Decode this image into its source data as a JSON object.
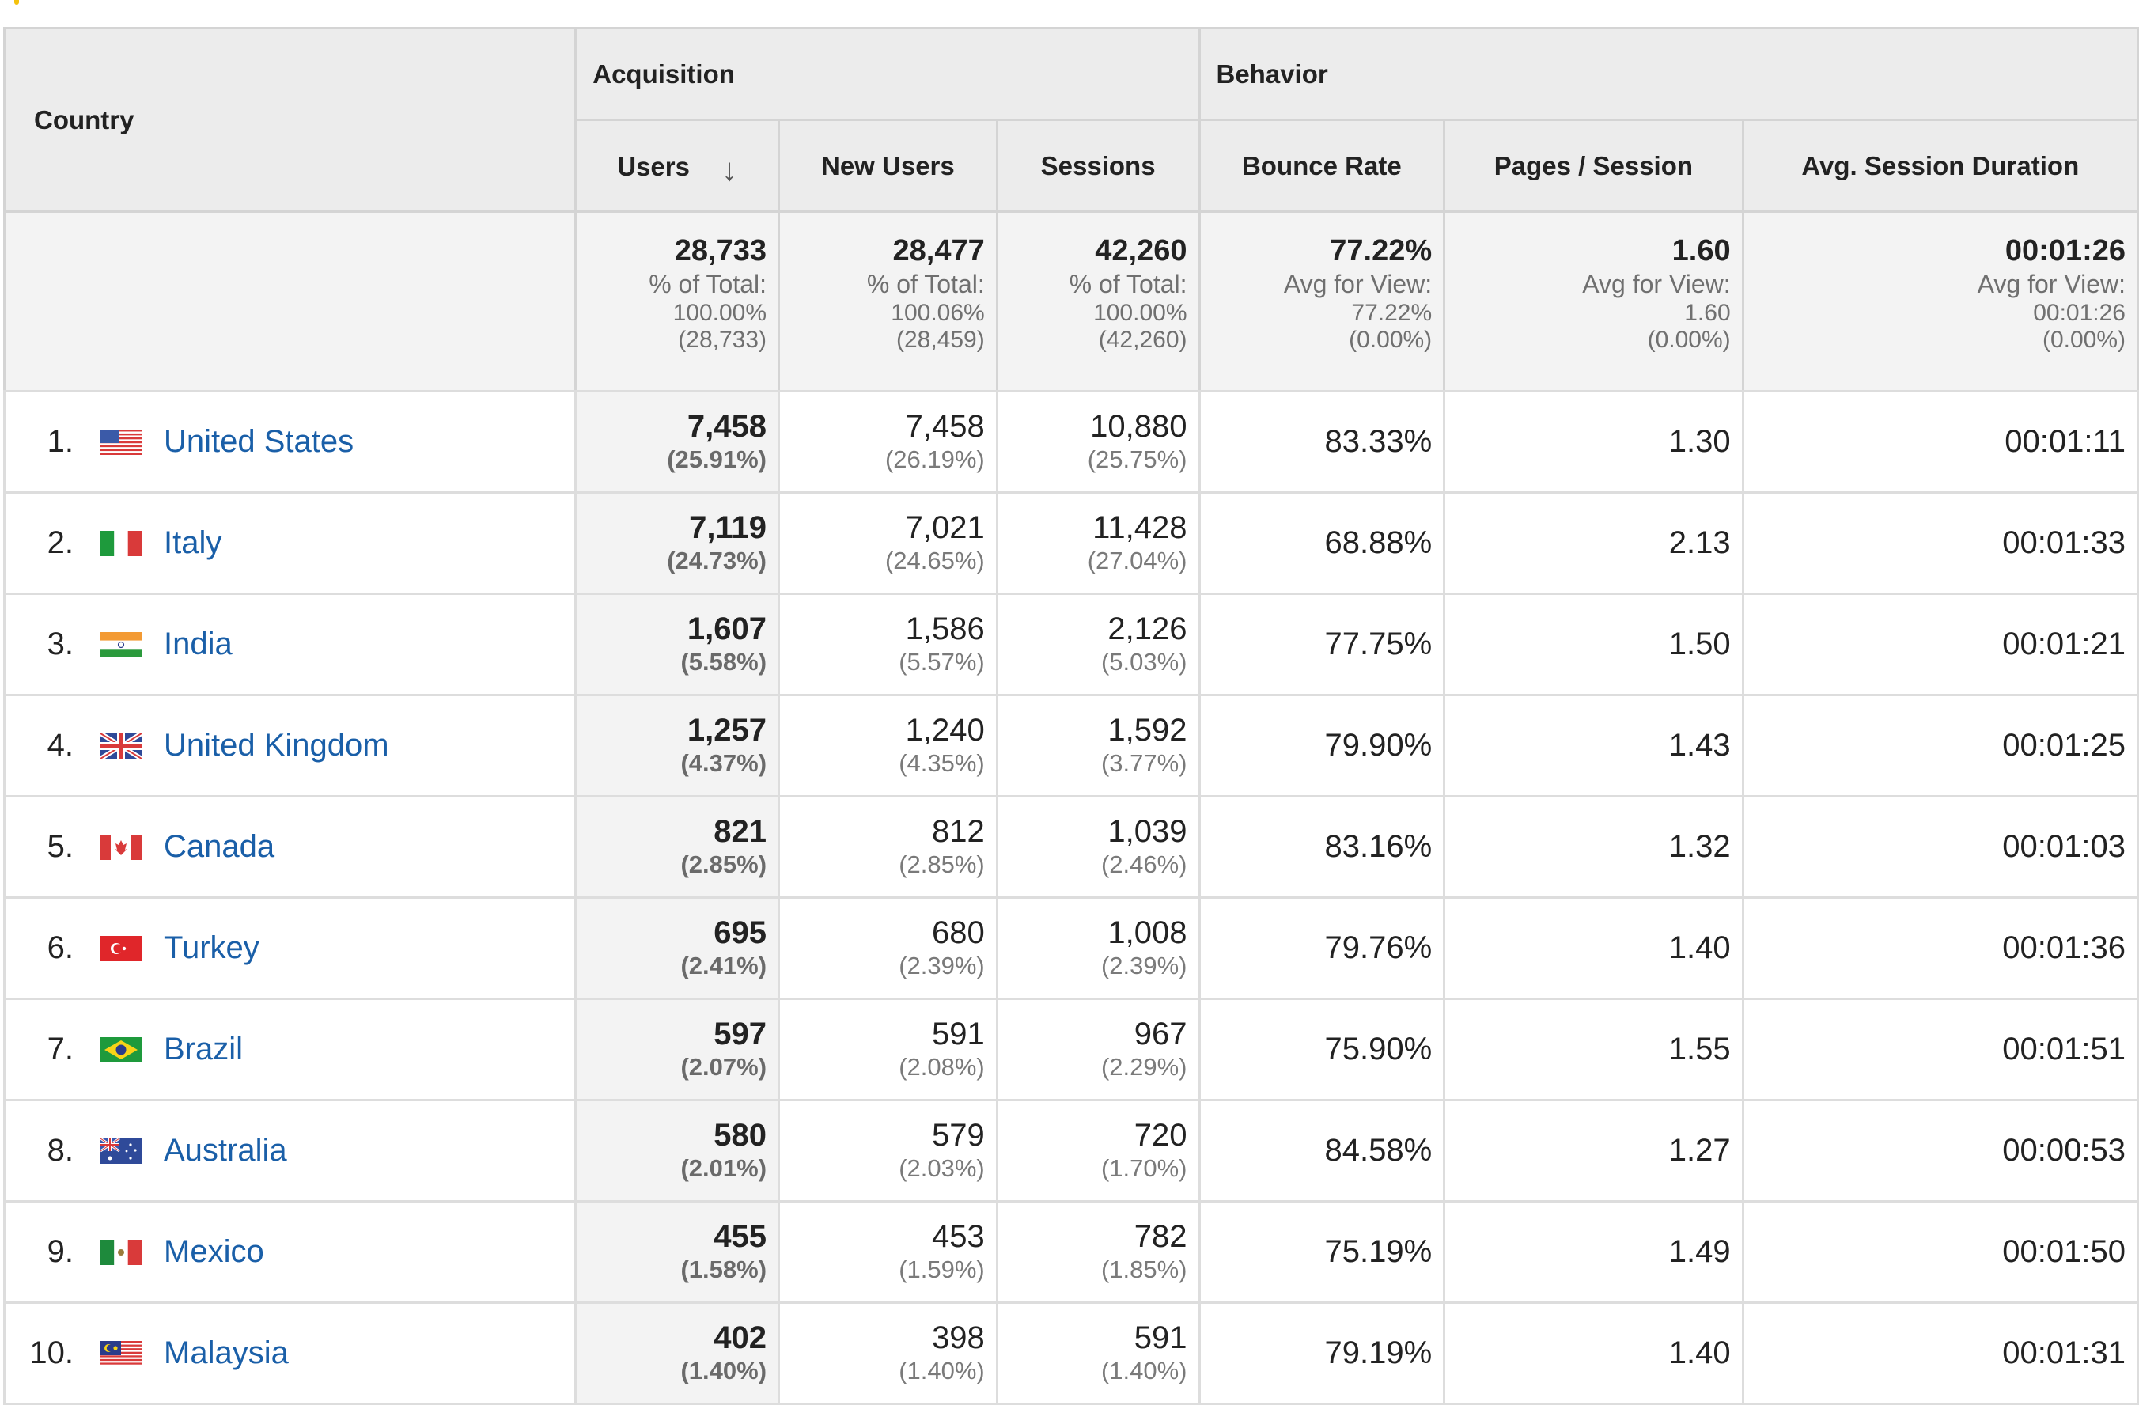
{
  "header": {
    "country": "Country",
    "acquisition": "Acquisition",
    "behavior": "Behavior",
    "columns": [
      "Users",
      "New Users",
      "Sessions",
      "Bounce Rate",
      "Pages / Session",
      "Avg. Session Duration"
    ],
    "sort_icon": "arrow-down-icon"
  },
  "totals": {
    "users": {
      "value": "28,733",
      "label": "% of Total:",
      "sub1": "100.00%",
      "sub2": "(28,733)"
    },
    "new_users": {
      "value": "28,477",
      "label": "% of Total:",
      "sub1": "100.06%",
      "sub2": "(28,459)"
    },
    "sessions": {
      "value": "42,260",
      "label": "% of Total:",
      "sub1": "100.00%",
      "sub2": "(42,260)"
    },
    "bounce_rate": {
      "value": "77.22%",
      "label": "Avg for View:",
      "sub1": "77.22%",
      "sub2": "(0.00%)"
    },
    "pages_session": {
      "value": "1.60",
      "label": "Avg for View:",
      "sub1": "1.60",
      "sub2": "(0.00%)"
    },
    "avg_duration": {
      "value": "00:01:26",
      "label": "Avg for View:",
      "sub1": "00:01:26",
      "sub2": "(0.00%)"
    }
  },
  "rows": [
    {
      "rank": "1.",
      "country": "United States",
      "flag": "us-flag-icon",
      "users": "7,458",
      "users_pct": "(25.91%)",
      "new_users": "7,458",
      "new_users_pct": "(26.19%)",
      "sessions": "10,880",
      "sessions_pct": "(25.75%)",
      "bounce_rate": "83.33%",
      "pages_session": "1.30",
      "avg_duration": "00:01:11"
    },
    {
      "rank": "2.",
      "country": "Italy",
      "flag": "italy-flag-icon",
      "users": "7,119",
      "users_pct": "(24.73%)",
      "new_users": "7,021",
      "new_users_pct": "(24.65%)",
      "sessions": "11,428",
      "sessions_pct": "(27.04%)",
      "bounce_rate": "68.88%",
      "pages_session": "2.13",
      "avg_duration": "00:01:33"
    },
    {
      "rank": "3.",
      "country": "India",
      "flag": "india-flag-icon",
      "users": "1,607",
      "users_pct": "(5.58%)",
      "new_users": "1,586",
      "new_users_pct": "(5.57%)",
      "sessions": "2,126",
      "sessions_pct": "(5.03%)",
      "bounce_rate": "77.75%",
      "pages_session": "1.50",
      "avg_duration": "00:01:21"
    },
    {
      "rank": "4.",
      "country": "United Kingdom",
      "flag": "uk-flag-icon",
      "users": "1,257",
      "users_pct": "(4.37%)",
      "new_users": "1,240",
      "new_users_pct": "(4.35%)",
      "sessions": "1,592",
      "sessions_pct": "(3.77%)",
      "bounce_rate": "79.90%",
      "pages_session": "1.43",
      "avg_duration": "00:01:25"
    },
    {
      "rank": "5.",
      "country": "Canada",
      "flag": "canada-flag-icon",
      "users": "821",
      "users_pct": "(2.85%)",
      "new_users": "812",
      "new_users_pct": "(2.85%)",
      "sessions": "1,039",
      "sessions_pct": "(2.46%)",
      "bounce_rate": "83.16%",
      "pages_session": "1.32",
      "avg_duration": "00:01:03"
    },
    {
      "rank": "6.",
      "country": "Turkey",
      "flag": "turkey-flag-icon",
      "users": "695",
      "users_pct": "(2.41%)",
      "new_users": "680",
      "new_users_pct": "(2.39%)",
      "sessions": "1,008",
      "sessions_pct": "(2.39%)",
      "bounce_rate": "79.76%",
      "pages_session": "1.40",
      "avg_duration": "00:01:36"
    },
    {
      "rank": "7.",
      "country": "Brazil",
      "flag": "brazil-flag-icon",
      "users": "597",
      "users_pct": "(2.07%)",
      "new_users": "591",
      "new_users_pct": "(2.08%)",
      "sessions": "967",
      "sessions_pct": "(2.29%)",
      "bounce_rate": "75.90%",
      "pages_session": "1.55",
      "avg_duration": "00:01:51"
    },
    {
      "rank": "8.",
      "country": "Australia",
      "flag": "australia-flag-icon",
      "users": "580",
      "users_pct": "(2.01%)",
      "new_users": "579",
      "new_users_pct": "(2.03%)",
      "sessions": "720",
      "sessions_pct": "(1.70%)",
      "bounce_rate": "84.58%",
      "pages_session": "1.27",
      "avg_duration": "00:00:53"
    },
    {
      "rank": "9.",
      "country": "Mexico",
      "flag": "mexico-flag-icon",
      "users": "455",
      "users_pct": "(1.58%)",
      "new_users": "453",
      "new_users_pct": "(1.59%)",
      "sessions": "782",
      "sessions_pct": "(1.85%)",
      "bounce_rate": "75.19%",
      "pages_session": "1.49",
      "avg_duration": "00:01:50"
    },
    {
      "rank": "10.",
      "country": "Malaysia",
      "flag": "malaysia-flag-icon",
      "users": "402",
      "users_pct": "(1.40%)",
      "new_users": "398",
      "new_users_pct": "(1.40%)",
      "sessions": "591",
      "sessions_pct": "(1.40%)",
      "bounce_rate": "79.19%",
      "pages_session": "1.40",
      "avg_duration": "00:01:31"
    }
  ],
  "colors": {
    "link": "#1a5fa8",
    "header_bg": "#ececec",
    "users_col_bg": "#f3f3f3"
  }
}
